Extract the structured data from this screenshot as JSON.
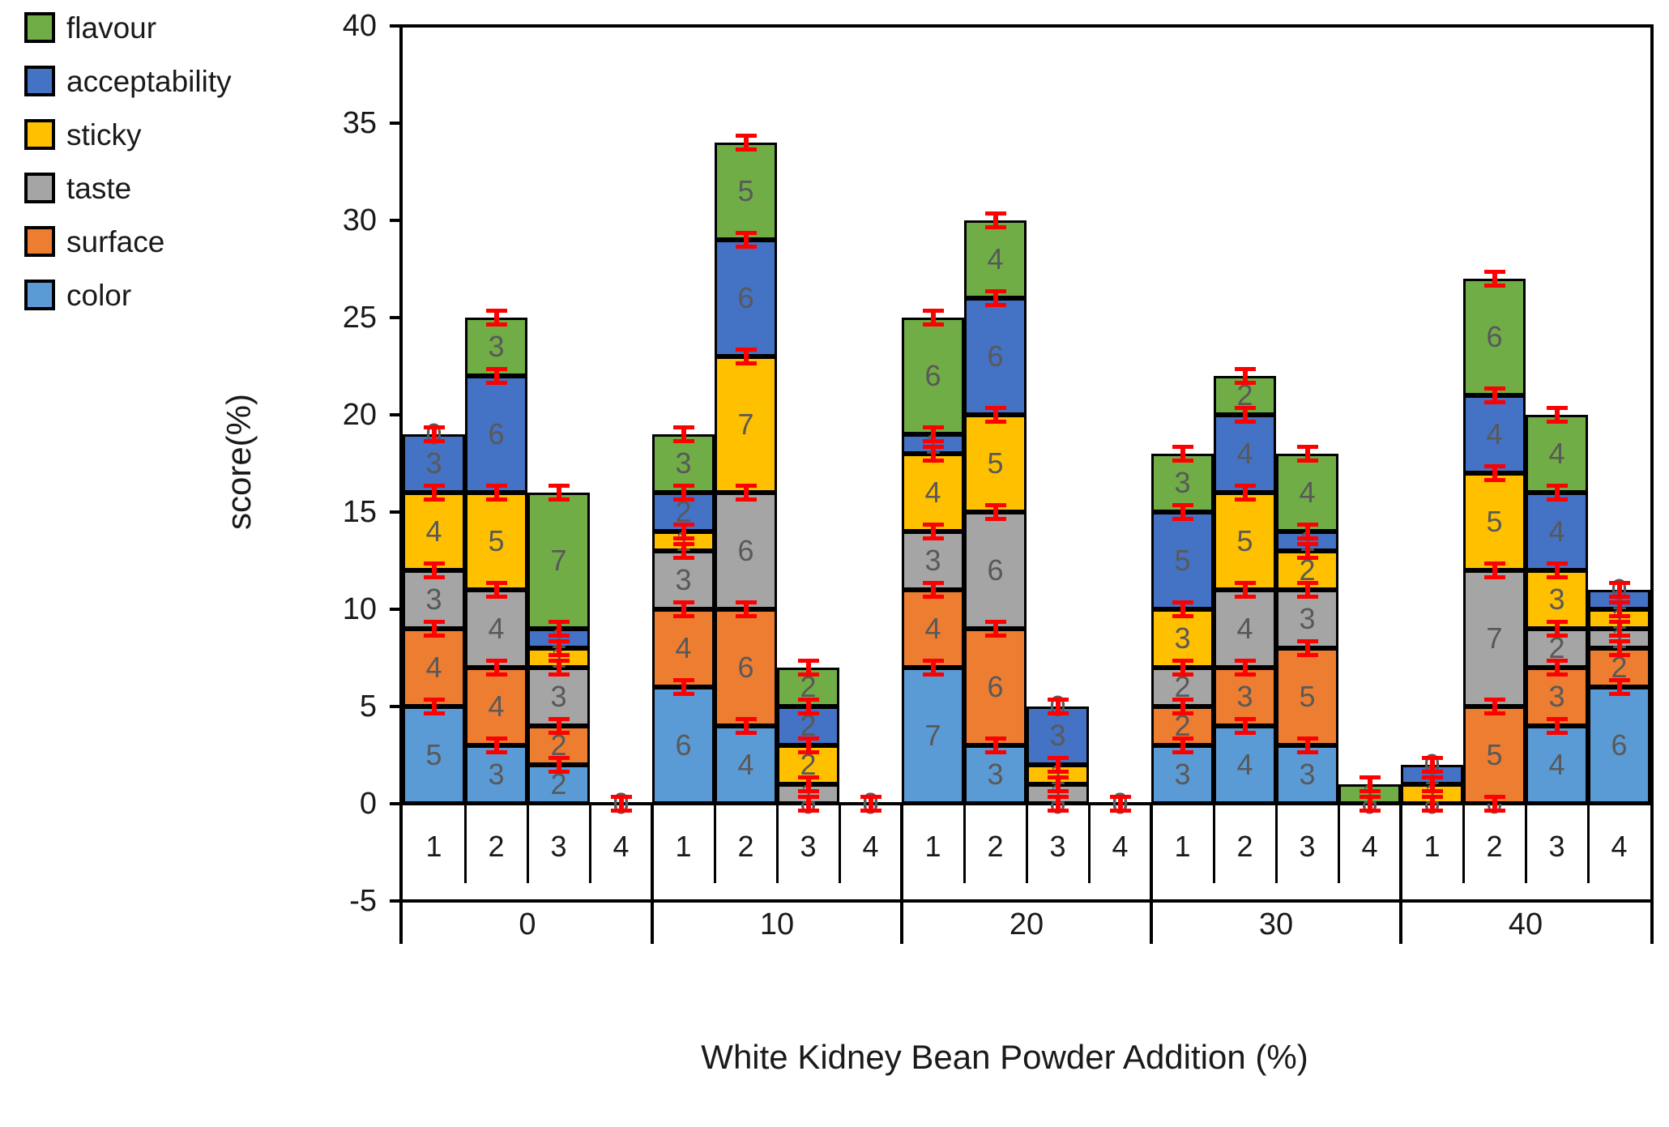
{
  "chart_data": {
    "type": "bar",
    "stacked": true,
    "title": "",
    "xlabel": "White Kidney Bean Powder Addition (%)",
    "ylabel": "score(%)",
    "ylim": [
      -5,
      40
    ],
    "yticks": [
      40,
      35,
      30,
      25,
      20,
      15,
      10,
      5,
      0,
      -5
    ],
    "grid": false,
    "legend_position": "top-left",
    "legend_order": [
      "flavour",
      "acceptability",
      "sticky",
      "taste",
      "surface",
      "color"
    ],
    "group_labels": [
      "0",
      "10",
      "20",
      "30",
      "40"
    ],
    "bar_labels": [
      "1",
      "2",
      "3",
      "4"
    ],
    "label_color": "#595959",
    "error_color": "#FF0000",
    "error_value": 0.4,
    "series": [
      {
        "name": "color",
        "color": "#5B9BD5",
        "values": [
          [
            5,
            3,
            2,
            0
          ],
          [
            6,
            4,
            0,
            0
          ],
          [
            7,
            3,
            0,
            0
          ],
          [
            3,
            4,
            3,
            0
          ],
          [
            0,
            0,
            4,
            6
          ]
        ]
      },
      {
        "name": "surface",
        "color": "#ED7D31",
        "values": [
          [
            4,
            4,
            2,
            0
          ],
          [
            4,
            6,
            0,
            0
          ],
          [
            4,
            6,
            0,
            0
          ],
          [
            2,
            3,
            5,
            0
          ],
          [
            0,
            5,
            3,
            2
          ]
        ]
      },
      {
        "name": "taste",
        "color": "#A5A5A5",
        "values": [
          [
            3,
            4,
            3,
            0
          ],
          [
            3,
            6,
            1,
            0
          ],
          [
            3,
            6,
            1,
            0
          ],
          [
            2,
            4,
            3,
            0
          ],
          [
            0,
            7,
            2,
            1
          ]
        ]
      },
      {
        "name": "sticky",
        "color": "#FFC000",
        "values": [
          [
            4,
            5,
            1,
            0
          ],
          [
            1,
            7,
            2,
            0
          ],
          [
            4,
            5,
            1,
            0
          ],
          [
            3,
            5,
            2,
            0
          ],
          [
            1,
            5,
            3,
            1
          ]
        ]
      },
      {
        "name": "acceptability",
        "color": "#4472C4",
        "values": [
          [
            3,
            6,
            1,
            0
          ],
          [
            2,
            6,
            2,
            0
          ],
          [
            1,
            6,
            3,
            0
          ],
          [
            5,
            4,
            1,
            0
          ],
          [
            1,
            4,
            4,
            1
          ]
        ]
      },
      {
        "name": "flavour",
        "color": "#70AD47",
        "values": [
          [
            0,
            3,
            7,
            0
          ],
          [
            3,
            5,
            2,
            0
          ],
          [
            6,
            4,
            0,
            0
          ],
          [
            3,
            2,
            4,
            1
          ],
          [
            0,
            6,
            4,
            0
          ]
        ]
      }
    ],
    "bar_totals": [
      [
        19,
        25,
        16,
        0
      ],
      [
        19,
        34,
        7,
        0
      ],
      [
        25,
        30,
        5,
        0
      ],
      [
        18,
        22,
        18,
        1
      ],
      [
        2,
        27,
        20,
        11
      ]
    ]
  }
}
